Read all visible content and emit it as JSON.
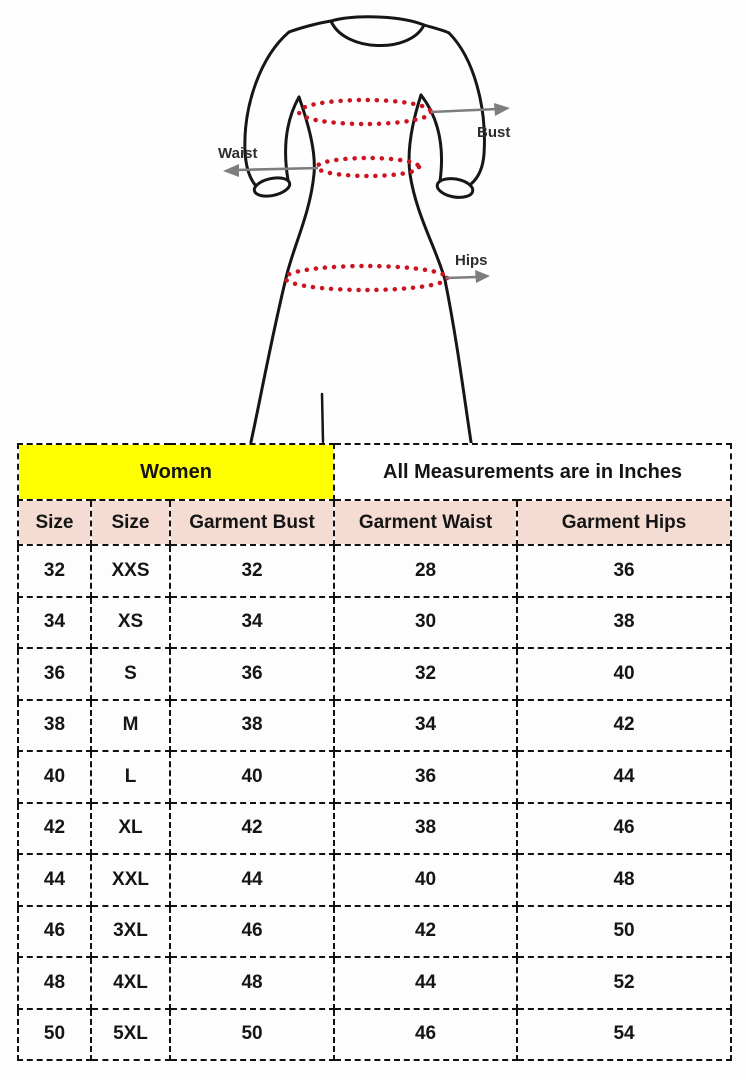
{
  "colors": {
    "accent-yellow": "#ffff00",
    "header-pink": "#f4dcd2",
    "dot-red": "#cc1420",
    "arrow-gray": "#7d7d7d",
    "ink": "#151515",
    "border-ink": "#111111"
  },
  "diagram": {
    "description": "dress-outline-with-measurement-ellipses",
    "labels": {
      "bust": "Bust",
      "waist": "Waist",
      "hips": "Hips"
    }
  },
  "table": {
    "group_headers": [
      {
        "label": "Women",
        "colspan": 3,
        "bg": "#ffff00"
      },
      {
        "label": "All Measurements are in Inches",
        "colspan": 2,
        "bg": "#ffffff"
      }
    ],
    "columns": [
      "Size",
      "Size",
      "Garment Bust",
      "Garment Waist",
      "Garment Hips"
    ],
    "rows": [
      [
        "32",
        "XXS",
        "32",
        "28",
        "36"
      ],
      [
        "34",
        "XS",
        "34",
        "30",
        "38"
      ],
      [
        "36",
        "S",
        "36",
        "32",
        "40"
      ],
      [
        "38",
        "M",
        "38",
        "34",
        "42"
      ],
      [
        "40",
        "L",
        "40",
        "36",
        "44"
      ],
      [
        "42",
        "XL",
        "42",
        "38",
        "46"
      ],
      [
        "44",
        "XXL",
        "44",
        "40",
        "48"
      ],
      [
        "46",
        "3XL",
        "46",
        "42",
        "50"
      ],
      [
        "48",
        "4XL",
        "48",
        "44",
        "52"
      ],
      [
        "50",
        "5XL",
        "50",
        "46",
        "54"
      ]
    ]
  },
  "chart_data": {
    "type": "table",
    "title": "Women size chart — All Measurements are in Inches",
    "columns": [
      "Size (numeric)",
      "Size (alpha)",
      "Garment Bust",
      "Garment Waist",
      "Garment Hips"
    ],
    "rows": [
      [
        32,
        "XXS",
        32,
        28,
        36
      ],
      [
        34,
        "XS",
        34,
        30,
        38
      ],
      [
        36,
        "S",
        36,
        32,
        40
      ],
      [
        38,
        "M",
        38,
        34,
        42
      ],
      [
        40,
        "L",
        40,
        36,
        44
      ],
      [
        42,
        "XL",
        42,
        38,
        46
      ],
      [
        44,
        "XXL",
        44,
        40,
        48
      ],
      [
        46,
        "3XL",
        46,
        42,
        50
      ],
      [
        48,
        "4XL",
        48,
        44,
        52
      ],
      [
        50,
        "5XL",
        50,
        46,
        54
      ]
    ],
    "units": "inches",
    "measurement_points": [
      "Bust",
      "Waist",
      "Hips"
    ]
  }
}
